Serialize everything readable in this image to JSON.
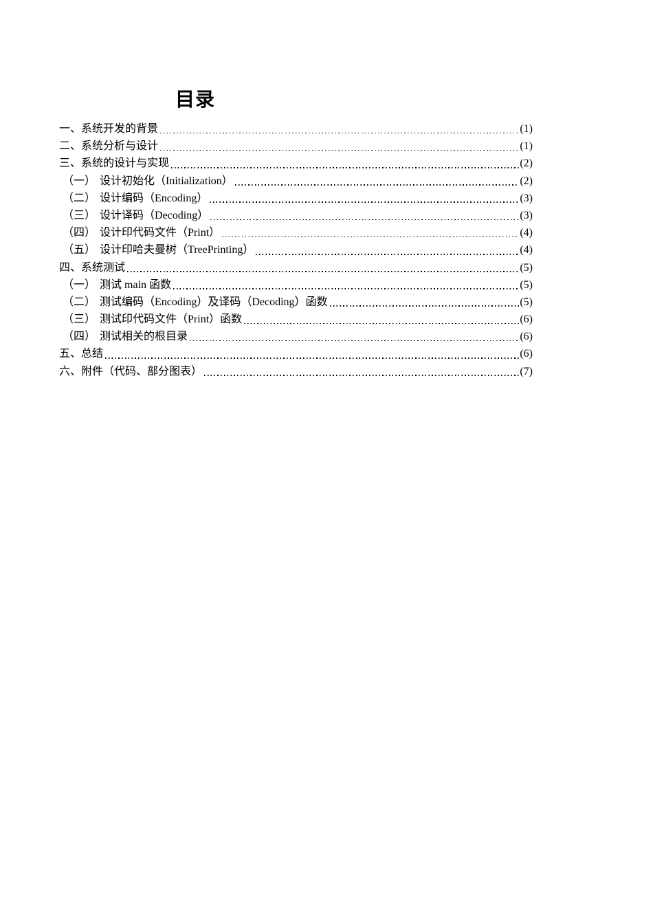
{
  "colors": {
    "page_background": "#ffffff",
    "text": "#000000"
  },
  "page": {
    "title": "目录"
  },
  "toc": {
    "items": [
      {
        "num": "一、",
        "title": "系统开发的背景",
        "page": "(1)",
        "level": 1
      },
      {
        "num": "二、",
        "title": "系统分析与设计",
        "page": "(1)",
        "level": 1
      },
      {
        "num": "三、",
        "title": "系统的设计与实现",
        "page": "(2)",
        "level": 1
      },
      {
        "num": "（一）",
        "title": "设计初始化（Initialization）",
        "page": "(2)",
        "level": 2
      },
      {
        "num": "（二）",
        "title": "设计编码（Encoding）",
        "page": "(3)",
        "level": 2
      },
      {
        "num": "（三）",
        "title": "设计译码（Decoding）",
        "page": "(3)",
        "level": 2
      },
      {
        "num": "（四）",
        "title": "设计印代码文件（Print）",
        "page": "(4)",
        "level": 2
      },
      {
        "num": "（五）",
        "title": "设计印哈夫曼树（TreePrinting）",
        "page": "(4)",
        "level": 2
      },
      {
        "num": "四、",
        "title": "系统测试",
        "page": "(5)",
        "level": 1
      },
      {
        "num": "（一）",
        "title": "测试 main 函数",
        "page": "(5)",
        "level": 2
      },
      {
        "num": "（二）",
        "title": "测试编码（Encoding）及译码（Decoding）函数",
        "page": "(5)",
        "level": 2
      },
      {
        "num": "（三）",
        "title": "测试印代码文件（Print）函数",
        "page": "(6)",
        "level": 2
      },
      {
        "num": "（四）",
        "title": "测试相关的根目录",
        "page": "(6)",
        "level": 2
      },
      {
        "num": "五、",
        "title": "总结",
        "page": "(6)",
        "level": 1
      },
      {
        "num": "六、",
        "title": "附件（代码、部分图表）",
        "page": "(7)",
        "level": 1
      }
    ]
  }
}
